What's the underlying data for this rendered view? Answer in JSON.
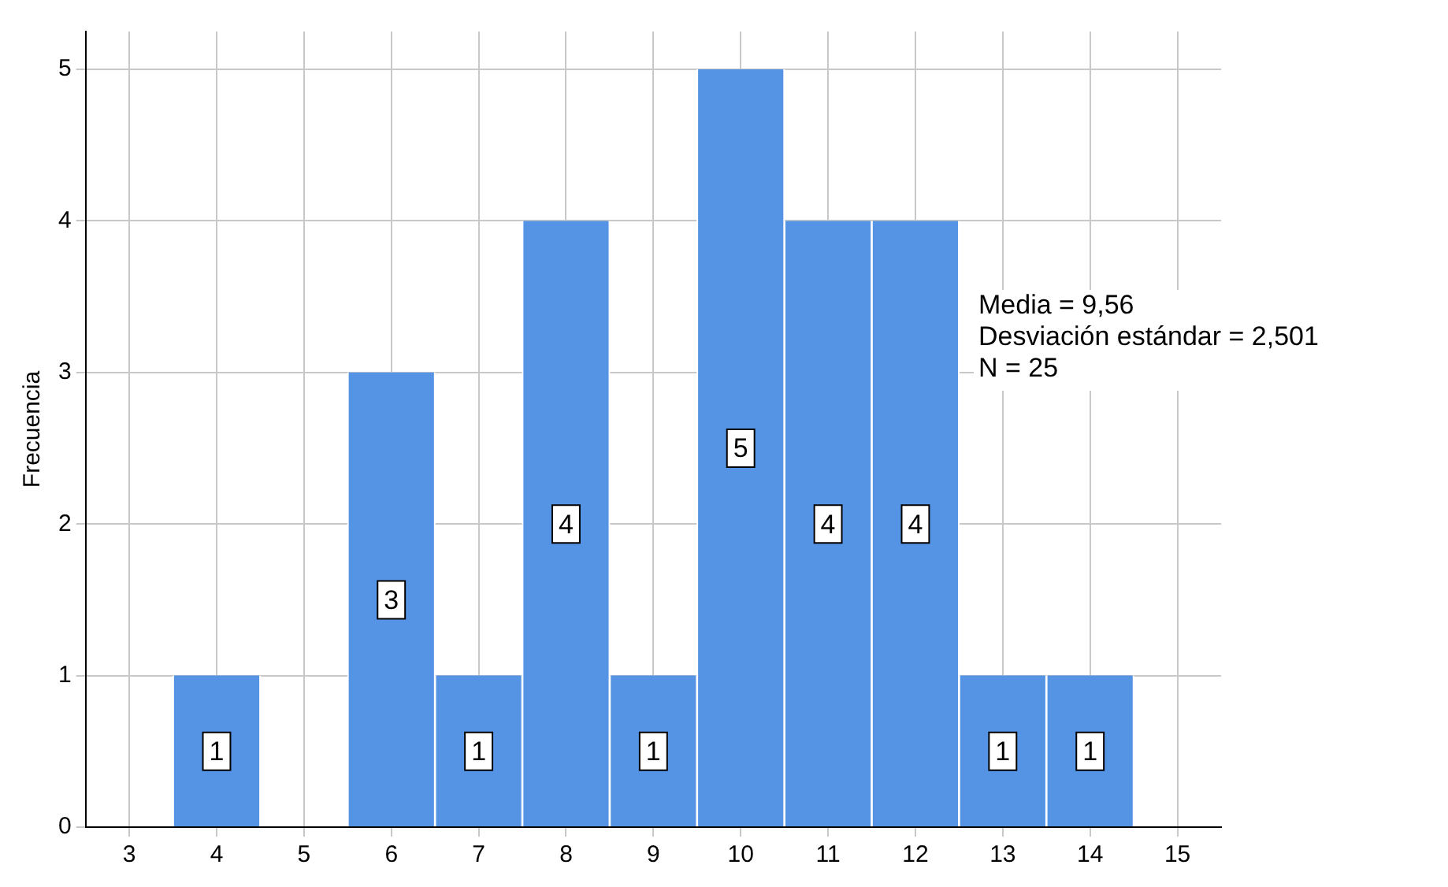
{
  "chart_data": {
    "type": "histogram",
    "ylabel": "Frecuencia",
    "bins": [
      3.5,
      4.5,
      5.5,
      6.5,
      7.5,
      8.5,
      9.5,
      10.5,
      11.5,
      12.5,
      13.5,
      14.5
    ],
    "values": [
      1,
      0,
      3,
      1,
      4,
      1,
      5,
      4,
      4,
      1,
      1
    ],
    "color": "#5594e4",
    "value_labels": [
      "1",
      null,
      "3",
      "1",
      "4",
      "1",
      "5",
      "4",
      "4",
      "1",
      "1"
    ],
    "xlim": [
      2.5,
      15.5
    ],
    "xticks": [
      3,
      4,
      5,
      6,
      7,
      8,
      9,
      10,
      11,
      12,
      13,
      14,
      15
    ],
    "ylim": [
      0,
      5.25
    ],
    "yticks": [
      0,
      1,
      2,
      3,
      4,
      5
    ],
    "grid": true,
    "annotations": [
      "Media = 9,56",
      "Desviación estándar = 2,501",
      "N = 25"
    ]
  }
}
